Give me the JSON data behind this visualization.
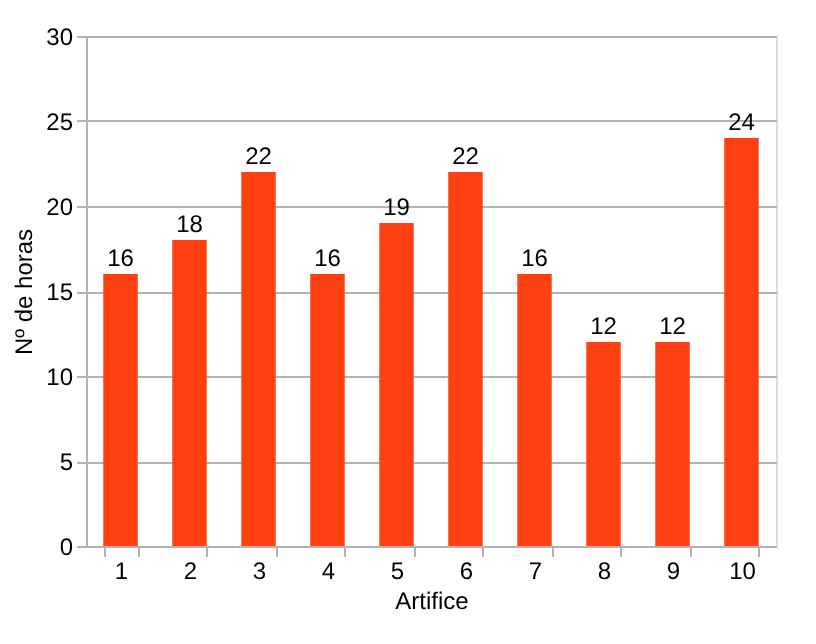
{
  "chart_data": {
    "type": "bar",
    "xlabel": "Artifice",
    "ylabel": "Nº de horas",
    "categories": [
      "1",
      "2",
      "3",
      "4",
      "5",
      "6",
      "7",
      "8",
      "9",
      "10"
    ],
    "values": [
      16,
      18,
      22,
      16,
      19,
      22,
      16,
      12,
      12,
      24
    ],
    "color": "#ff4010",
    "ylim": [
      0,
      30
    ],
    "yticks": [
      0,
      5,
      10,
      15,
      20,
      25,
      30
    ],
    "grid": "y",
    "data_labels": true
  }
}
